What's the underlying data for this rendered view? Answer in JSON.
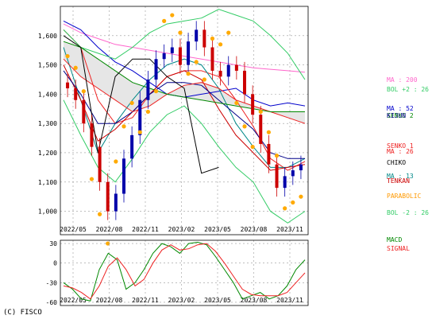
{
  "copyright": "(C) FISCO",
  "chart_data": [
    {
      "type": "line",
      "x_ticks": [
        "2022/05",
        "2022/08",
        "2022/11",
        "2023/02",
        "2023/05",
        "2023/08",
        "2023/11"
      ],
      "ylim": [
        920,
        1700
      ],
      "y_ticks": [
        1000,
        1100,
        1200,
        1300,
        1400,
        1500,
        1600
      ],
      "y_tick_labels": [
        "1,000",
        "1,100",
        "1,200",
        "1,300",
        "1,400",
        "1,500",
        "1,600"
      ],
      "grid": true,
      "legend": [
        {
          "label": "MA : 200",
          "color": "#ff66cc"
        },
        {
          "label": "BOL +2 : 26",
          "color": "#33cc66"
        },
        {
          "label": "MA : 52",
          "color": "#0000cc"
        },
        {
          "label": "SENKO 2",
          "color": "#008800"
        },
        {
          "label": "KIJUN",
          "color": "#000088"
        },
        {
          "label": "SENKO 1",
          "color": "#ee2222"
        },
        {
          "label": "MA : 26",
          "color": "#ee2222"
        },
        {
          "label": "CHIKO",
          "color": "#000000"
        },
        {
          "label": "MA : 13",
          "color": "#008888"
        },
        {
          "label": "TENKAN",
          "color": "#cc0000"
        },
        {
          "label": "PARABOLIC",
          "color": "#ff9900"
        },
        {
          "label": "BOL -2 : 26",
          "color": "#33cc66"
        }
      ],
      "series": [
        {
          "name": "MA : 200",
          "values": [
            1640,
            1610,
            1590,
            1570,
            1560,
            1550,
            1540,
            1530,
            1520,
            1510,
            1500,
            1490,
            1485,
            1480,
            1475
          ]
        },
        {
          "name": "MA : 52",
          "values": [
            1650,
            1620,
            1560,
            1510,
            1480,
            1440,
            1400,
            1390,
            1400,
            1410,
            1420,
            1380,
            1360,
            1370,
            1360
          ]
        },
        {
          "name": "MA : 26",
          "values": [
            1620,
            1560,
            1380,
            1300,
            1320,
            1400,
            1460,
            1480,
            1480,
            1460,
            1380,
            1290,
            1180,
            1140,
            1170
          ]
        },
        {
          "name": "MA : 13",
          "values": [
            1560,
            1380,
            1200,
            1300,
            1380,
            1450,
            1500,
            1520,
            1500,
            1420,
            1300,
            1220,
            1150,
            1150,
            1180
          ]
        },
        {
          "name": "BOL +2 : 26",
          "values": [
            1620,
            1560,
            1540,
            1520,
            1560,
            1610,
            1640,
            1650,
            1660,
            1690,
            1670,
            1650,
            1600,
            1540,
            1450
          ]
        },
        {
          "name": "BOL -2 : 26",
          "values": [
            1380,
            1260,
            1150,
            1100,
            1180,
            1270,
            1330,
            1360,
            1300,
            1220,
            1150,
            1100,
            1000,
            960,
            1000
          ]
        },
        {
          "name": "TENKAN",
          "values": [
            1500,
            1380,
            1240,
            1280,
            1340,
            1400,
            1460,
            1480,
            1450,
            1350,
            1260,
            1200,
            1140,
            1150,
            1160
          ]
        },
        {
          "name": "KIJUN",
          "values": [
            1480,
            1400,
            1300,
            1300,
            1340,
            1400,
            1440,
            1440,
            1430,
            1380,
            1330,
            1280,
            1200,
            1180,
            1180
          ]
        },
        {
          "name": "SENKO 1",
          "values": [
            1520,
            1460,
            1420,
            1380,
            1340,
            1360,
            1400,
            1430,
            1440,
            1420,
            1380,
            1360,
            1340,
            1320,
            1300
          ]
        },
        {
          "name": "SENKO 2",
          "values": [
            1580,
            1560,
            1520,
            1480,
            1440,
            1420,
            1400,
            1390,
            1380,
            1370,
            1360,
            1350,
            1340,
            1340,
            1340
          ]
        },
        {
          "name": "CHIKO",
          "values": [
            1600,
            1560,
            1200,
            1460,
            1520,
            1520,
            1460,
            1420,
            1130,
            1150,
            null,
            null,
            null,
            null,
            null
          ]
        }
      ],
      "price_candles_close": [
        1420,
        1380,
        1300,
        1220,
        1100,
        1000,
        1060,
        1180,
        1260,
        1380,
        1450,
        1520,
        1540,
        1560,
        1500,
        1580,
        1620,
        1560,
        1480,
        1460,
        1500,
        1480,
        1400,
        1330,
        1230,
        1160,
        1080,
        1120,
        1140,
        1160
      ]
    },
    {
      "type": "line",
      "x_ticks": [
        "2022/05",
        "2022/08",
        "2022/11",
        "2023/02",
        "2023/05",
        "2023/08",
        "2023/11"
      ],
      "ylim": [
        -65,
        35
      ],
      "y_ticks": [
        30,
        0,
        -30,
        -60
      ],
      "y_tick_labels": [
        "30",
        "0",
        "-30",
        "-60"
      ],
      "grid": true,
      "legend": [
        {
          "label": "MACD",
          "color": "#008800"
        },
        {
          "label": "SIGNAL",
          "color": "#ee2222"
        }
      ],
      "series": [
        {
          "name": "MACD",
          "values": [
            -30,
            -40,
            -55,
            -58,
            -10,
            15,
            5,
            -40,
            -30,
            -10,
            15,
            30,
            25,
            15,
            30,
            32,
            28,
            10,
            -10,
            -30,
            -55,
            -50,
            -45,
            -55,
            -50,
            -35,
            -10,
            5
          ]
        },
        {
          "name": "SIGNAL",
          "values": [
            -35,
            -38,
            -45,
            -55,
            -35,
            -5,
            8,
            -10,
            -35,
            -25,
            0,
            20,
            28,
            20,
            22,
            28,
            30,
            18,
            0,
            -20,
            -40,
            -48,
            -50,
            -50,
            -50,
            -45,
            -30,
            -15
          ]
        }
      ]
    }
  ]
}
